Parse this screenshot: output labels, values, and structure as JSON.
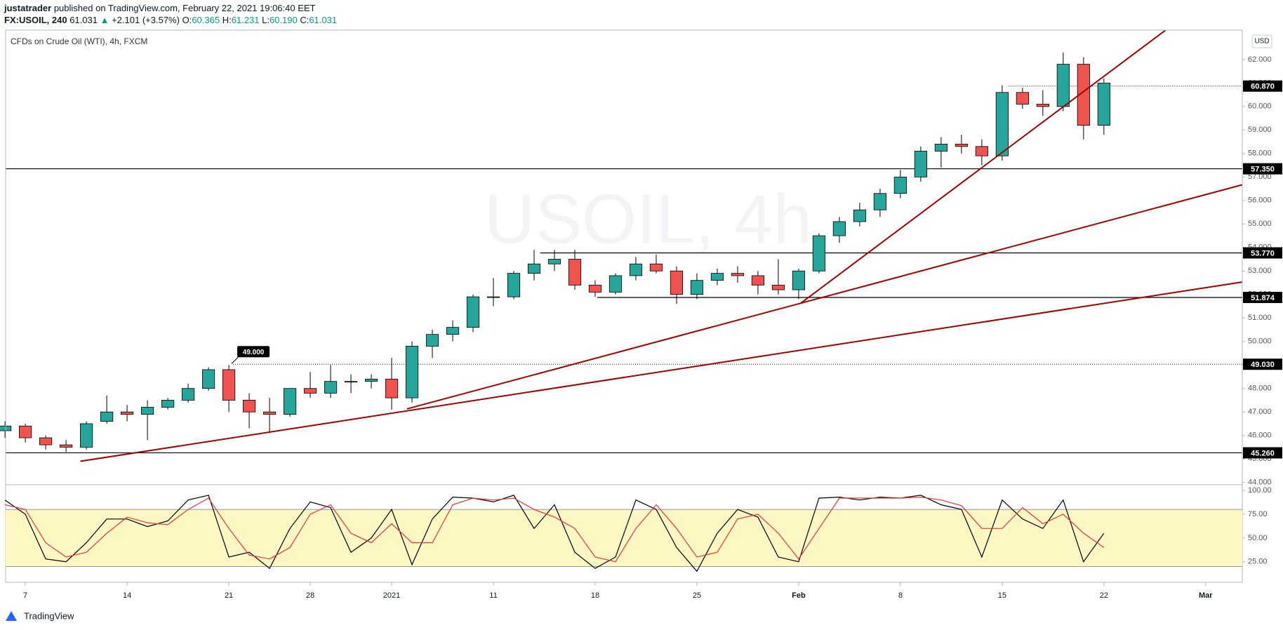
{
  "header": {
    "user": "justatrader",
    "published": "published on TradingView.com, February 22, 2021 19:06:40 EET",
    "symbol": "FX:USOIL, 240",
    "last": "61.031",
    "arrow": "▲",
    "change": "+2.101 (+3.57%)",
    "ohlc": [
      {
        "label": "O:",
        "value": "60.365"
      },
      {
        "label": "H:",
        "value": "61.231"
      },
      {
        "label": "L:",
        "value": "60.190"
      },
      {
        "label": "C:",
        "value": "61.031"
      }
    ]
  },
  "footer": {
    "brand": "TradingView"
  },
  "chart_data": [
    {
      "type": "candlestick",
      "title": "CFDs on Crude Oil (WTI), 4h, FXCM",
      "watermark": "USOIL, 4h",
      "unit": "USD",
      "x": [
        -1,
        0,
        1,
        2,
        3,
        4,
        5,
        6,
        7,
        8,
        9,
        10,
        11,
        12,
        13,
        14,
        15,
        16,
        17,
        18,
        19,
        20,
        21,
        22,
        23,
        24,
        25,
        26,
        27,
        28,
        29,
        30,
        31,
        32,
        33,
        34,
        35,
        36,
        37,
        38,
        39,
        40,
        41,
        42,
        43,
        44,
        45,
        46,
        47,
        48,
        49,
        50,
        51,
        52,
        53
      ],
      "open": [
        46.2,
        46.4,
        45.9,
        45.6,
        45.5,
        46.6,
        47.0,
        46.9,
        47.2,
        47.5,
        48.0,
        48.8,
        47.5,
        47.0,
        46.9,
        48.0,
        47.8,
        48.3,
        48.3,
        48.4,
        47.6,
        49.8,
        50.3,
        50.6,
        51.9,
        51.9,
        52.9,
        53.3,
        53.5,
        52.4,
        52.1,
        52.8,
        53.3,
        53.0,
        52.0,
        52.6,
        52.9,
        52.8,
        52.4,
        52.2,
        53.0,
        54.5,
        55.1,
        55.6,
        56.3,
        57.0,
        58.1,
        58.4,
        58.3,
        57.9,
        60.6,
        60.1,
        60.0,
        61.8,
        59.2
      ],
      "high": [
        46.6,
        46.5,
        46.0,
        45.8,
        46.6,
        47.7,
        47.3,
        47.5,
        47.6,
        48.2,
        48.9,
        49.0,
        47.8,
        47.6,
        48.0,
        48.7,
        49.0,
        48.6,
        48.6,
        49.3,
        50.0,
        50.5,
        50.9,
        52.0,
        52.7,
        53.0,
        53.9,
        53.9,
        53.9,
        52.6,
        52.9,
        53.6,
        53.7,
        53.2,
        52.9,
        53.1,
        53.2,
        53.0,
        53.5,
        53.1,
        54.6,
        55.3,
        55.9,
        56.5,
        57.3,
        58.3,
        58.7,
        58.8,
        58.6,
        60.9,
        60.8,
        60.7,
        62.3,
        62.1,
        61.2
      ],
      "low": [
        45.9,
        45.7,
        45.4,
        45.3,
        45.4,
        46.5,
        46.6,
        45.8,
        47.1,
        47.4,
        47.9,
        47.0,
        46.3,
        46.1,
        46.8,
        47.6,
        47.6,
        47.8,
        48.0,
        47.1,
        47.4,
        49.3,
        50.0,
        50.4,
        51.5,
        51.8,
        52.6,
        53.0,
        52.2,
        51.9,
        52.0,
        52.6,
        52.9,
        51.6,
        51.8,
        52.4,
        52.5,
        52.0,
        52.0,
        51.8,
        52.9,
        54.2,
        54.9,
        55.3,
        56.1,
        56.8,
        57.4,
        58.0,
        57.5,
        57.7,
        59.9,
        59.6,
        59.8,
        58.6,
        58.8
      ],
      "close": [
        46.4,
        45.9,
        45.6,
        45.5,
        46.5,
        47.0,
        46.9,
        47.2,
        47.5,
        48.0,
        48.8,
        47.5,
        47.0,
        46.9,
        48.0,
        47.8,
        48.3,
        48.3,
        48.4,
        47.6,
        49.8,
        50.3,
        50.6,
        51.9,
        51.9,
        52.9,
        53.3,
        53.5,
        52.4,
        52.1,
        52.8,
        53.3,
        53.0,
        52.0,
        52.6,
        52.9,
        52.8,
        52.4,
        52.2,
        53.0,
        54.5,
        55.1,
        55.6,
        56.3,
        57.0,
        58.1,
        58.4,
        58.3,
        57.9,
        60.6,
        60.1,
        60.0,
        61.8,
        59.2,
        61.0
      ],
      "up_color": "#26a69a",
      "down_color": "#ef5350",
      "xlim": [
        -0.97,
        59.8
      ],
      "ylim": [
        43.9,
        63.25
      ],
      "yticks": [
        {
          "value": 44,
          "label": "44.000"
        },
        {
          "value": 45,
          "label": "45.000"
        },
        {
          "value": 46,
          "label": "46.000"
        },
        {
          "value": 47,
          "label": "47.000"
        },
        {
          "value": 48,
          "label": "48.000"
        },
        {
          "value": 49,
          "label": "49.000"
        },
        {
          "value": 50,
          "label": "50.000"
        },
        {
          "value": 51,
          "label": "51.000"
        },
        {
          "value": 52,
          "label": "52.000"
        },
        {
          "value": 53,
          "label": "53.000"
        },
        {
          "value": 54,
          "label": "54.000"
        },
        {
          "value": 55,
          "label": "55.000"
        },
        {
          "value": 56,
          "label": "56.000"
        },
        {
          "value": 57,
          "label": "57.000"
        },
        {
          "value": 58,
          "label": "58.000"
        },
        {
          "value": 59,
          "label": "59.000"
        },
        {
          "value": 60,
          "label": "60.000"
        },
        {
          "value": 61,
          "label": "61.000"
        },
        {
          "value": 62,
          "label": "62.000"
        }
      ],
      "levels": [
        {
          "value": 60.87,
          "label": "60.870",
          "style": "dotted",
          "x_start": 48.3
        },
        {
          "value": 57.35,
          "label": "57.350",
          "style": "solid"
        },
        {
          "value": 53.77,
          "label": "53.770",
          "style": "solid",
          "x_start": 25.3
        },
        {
          "value": 51.874,
          "label": "51.874",
          "style": "solid",
          "x_start": 28.1
        },
        {
          "value": 49.03,
          "label": "49.030",
          "style": "dotted",
          "x_start": 10.2
        },
        {
          "value": 45.26,
          "label": "45.260",
          "style": "solid"
        }
      ],
      "trend_lines": [
        {
          "x": [
            2.7,
            59.8
          ],
          "y": [
            44.9,
            52.53
          ],
          "color": "#a00000"
        },
        {
          "x": [
            18.75,
            59.8
          ],
          "y": [
            47.13,
            56.67
          ],
          "color": "#a00000"
        },
        {
          "x": [
            38.09,
            56.03
          ],
          "y": [
            51.62,
            63.25
          ],
          "color": "#a00000"
        }
      ],
      "callout": {
        "x": 10,
        "value": 49,
        "label": "49.000"
      }
    },
    {
      "type": "line",
      "x": [
        -1,
        0,
        1,
        2,
        3,
        4,
        5,
        6,
        7,
        8,
        9,
        10,
        11,
        12,
        13,
        14,
        15,
        16,
        17,
        18,
        19,
        20,
        21,
        22,
        23,
        24,
        25,
        26,
        27,
        28,
        29,
        30,
        31,
        32,
        33,
        34,
        35,
        36,
        37,
        38,
        39,
        40,
        41,
        42,
        43,
        44,
        45,
        46,
        47,
        48,
        49,
        50,
        51,
        52,
        53
      ],
      "series": [
        {
          "color": "#000000",
          "values": [
            90,
            75,
            28,
            25,
            45,
            70,
            70,
            62,
            68,
            90,
            95,
            30,
            35,
            18,
            60,
            88,
            82,
            35,
            50,
            80,
            22,
            70,
            93,
            92,
            88,
            95,
            60,
            85,
            35,
            18,
            30,
            90,
            80,
            40,
            15,
            55,
            80,
            72,
            30,
            25,
            92,
            93,
            90,
            93,
            92,
            95,
            85,
            80,
            30,
            90,
            70,
            60,
            90,
            25,
            55
          ]
        },
        {
          "color": "#e53935",
          "values": [
            85,
            80,
            45,
            30,
            35,
            55,
            72,
            66,
            64,
            80,
            92,
            60,
            32,
            28,
            40,
            75,
            85,
            55,
            45,
            65,
            45,
            45,
            85,
            92,
            90,
            92,
            80,
            72,
            60,
            30,
            25,
            60,
            85,
            60,
            30,
            35,
            70,
            75,
            55,
            28,
            60,
            92,
            92,
            92,
            92,
            93,
            90,
            84,
            60,
            60,
            82,
            65,
            75,
            55,
            40
          ]
        }
      ],
      "band": [
        20,
        80
      ],
      "band_color": "#fdf7c3",
      "xlim": [
        -0.97,
        59.8
      ],
      "ylim": [
        3.4,
        106
      ],
      "yticks": [
        {
          "value": 25,
          "label": "25.00"
        },
        {
          "value": 50,
          "label": "50.00"
        },
        {
          "value": 75,
          "label": "75.00"
        },
        {
          "value": 100,
          "label": "100.00"
        }
      ],
      "xticks": [
        {
          "value": 0,
          "label": "7"
        },
        {
          "value": 5,
          "label": "14"
        },
        {
          "value": 10,
          "label": "21"
        },
        {
          "value": 14,
          "label": "28"
        },
        {
          "value": 18,
          "label": "2021"
        },
        {
          "value": 23,
          "label": "11"
        },
        {
          "value": 28,
          "label": "18"
        },
        {
          "value": 33,
          "label": "25"
        },
        {
          "value": 38,
          "label": "Feb"
        },
        {
          "value": 43,
          "label": "8"
        },
        {
          "value": 48,
          "label": "15"
        },
        {
          "value": 53,
          "label": "22"
        },
        {
          "value": 58,
          "label": "Mar"
        }
      ]
    }
  ]
}
